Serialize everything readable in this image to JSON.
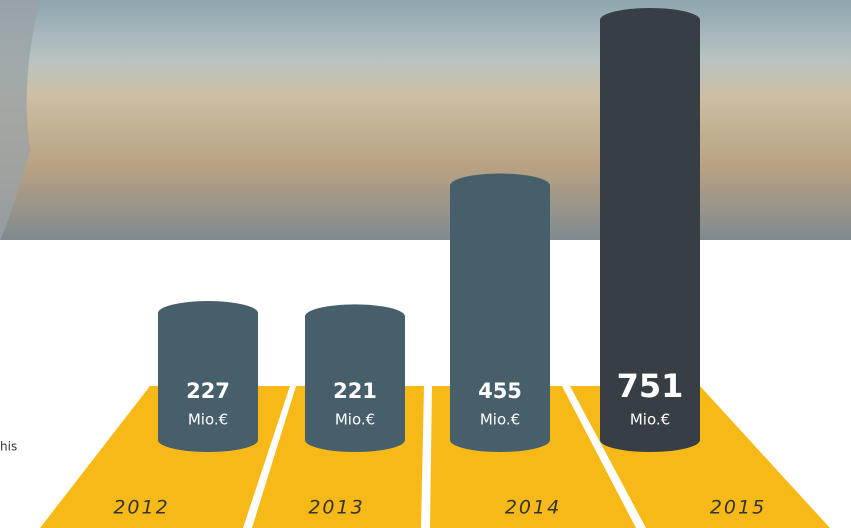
{
  "chart_data": {
    "type": "bar",
    "categories": [
      "2012",
      "2013",
      "2014",
      "2015"
    ],
    "values": [
      227,
      221,
      455,
      751
    ],
    "unit": "Mio.€",
    "colors": [
      "#465f6b",
      "#465f6b",
      "#465f6b",
      "#373e44"
    ],
    "floor_color": "#f6b917",
    "ylim": [
      0,
      751
    ]
  },
  "side_text": "his"
}
